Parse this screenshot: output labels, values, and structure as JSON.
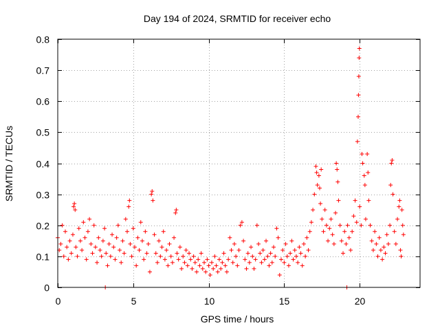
{
  "chart_data": {
    "type": "scatter",
    "title": "Day 194 of 2024, SRMTID for receiver echo",
    "xlabel": "GPS time / hours",
    "ylabel": "SRMTID / TECUs",
    "xlim": [
      0,
      24
    ],
    "ylim": [
      0,
      0.8
    ],
    "grid": true,
    "marker": "+",
    "color": "#ff0000",
    "x_ticks": [
      0,
      5,
      10,
      15,
      20
    ],
    "x_tick_labels": [
      "0",
      "5",
      "10",
      "15",
      "20"
    ],
    "y_ticks": [
      0,
      0.1,
      0.2,
      0.3,
      0.4,
      0.5,
      0.6,
      0.7,
      0.8
    ],
    "y_tick_labels": [
      "0",
      "0.1",
      "0.2",
      "0.3",
      "0.4",
      "0.5",
      "0.6",
      "0.7",
      "0.8"
    ],
    "series": [
      {
        "name": "SRMTID",
        "points": [
          [
            0.0,
            0.16
          ],
          [
            0.1,
            0.12
          ],
          [
            0.2,
            0.14
          ],
          [
            0.3,
            0.2
          ],
          [
            0.4,
            0.1
          ],
          [
            0.5,
            0.18
          ],
          [
            0.6,
            0.13
          ],
          [
            0.7,
            0.09
          ],
          [
            0.8,
            0.15
          ],
          [
            0.9,
            0.11
          ],
          [
            1.0,
            0.17
          ],
          [
            1.05,
            0.26
          ],
          [
            1.1,
            0.27
          ],
          [
            1.15,
            0.25
          ],
          [
            1.2,
            0.13
          ],
          [
            1.3,
            0.1
          ],
          [
            1.4,
            0.19
          ],
          [
            1.5,
            0.15
          ],
          [
            1.6,
            0.12
          ],
          [
            1.7,
            0.21
          ],
          [
            1.8,
            0.16
          ],
          [
            1.9,
            0.09
          ],
          [
            2.0,
            0.18
          ],
          [
            2.1,
            0.22
          ],
          [
            2.2,
            0.14
          ],
          [
            2.3,
            0.11
          ],
          [
            2.4,
            0.2
          ],
          [
            2.5,
            0.13
          ],
          [
            2.6,
            0.08
          ],
          [
            2.7,
            0.16
          ],
          [
            2.8,
            0.12
          ],
          [
            2.9,
            0.1
          ],
          [
            3.0,
            0.15
          ],
          [
            3.1,
            0.19
          ],
          [
            3.15,
            0.0
          ],
          [
            3.2,
            0.11
          ],
          [
            3.3,
            0.07
          ],
          [
            3.4,
            0.14
          ],
          [
            3.5,
            0.1
          ],
          [
            3.6,
            0.17
          ],
          [
            3.7,
            0.13
          ],
          [
            3.8,
            0.09
          ],
          [
            3.9,
            0.16
          ],
          [
            4.0,
            0.2
          ],
          [
            4.1,
            0.12
          ],
          [
            4.2,
            0.08
          ],
          [
            4.3,
            0.15
          ],
          [
            4.4,
            0.11
          ],
          [
            4.5,
            0.22
          ],
          [
            4.6,
            0.18
          ],
          [
            4.7,
            0.26
          ],
          [
            4.75,
            0.28
          ],
          [
            4.8,
            0.14
          ],
          [
            4.9,
            0.1
          ],
          [
            5.0,
            0.19
          ],
          [
            5.1,
            0.13
          ],
          [
            5.2,
            0.07
          ],
          [
            5.3,
            0.16
          ],
          [
            5.4,
            0.12
          ],
          [
            5.5,
            0.21
          ],
          [
            5.6,
            0.15
          ],
          [
            5.7,
            0.09
          ],
          [
            5.8,
            0.18
          ],
          [
            5.9,
            0.11
          ],
          [
            6.0,
            0.14
          ],
          [
            6.1,
            0.05
          ],
          [
            6.2,
            0.3
          ],
          [
            6.25,
            0.31
          ],
          [
            6.3,
            0.28
          ],
          [
            6.4,
            0.17
          ],
          [
            6.5,
            0.11
          ],
          [
            6.6,
            0.08
          ],
          [
            6.7,
            0.15
          ],
          [
            6.8,
            0.1
          ],
          [
            6.9,
            0.13
          ],
          [
            7.0,
            0.18
          ],
          [
            7.1,
            0.09
          ],
          [
            7.2,
            0.12
          ],
          [
            7.3,
            0.07
          ],
          [
            7.4,
            0.14
          ],
          [
            7.5,
            0.1
          ],
          [
            7.6,
            0.08
          ],
          [
            7.7,
            0.16
          ],
          [
            7.8,
            0.24
          ],
          [
            7.85,
            0.25
          ],
          [
            7.9,
            0.11
          ],
          [
            8.0,
            0.09
          ],
          [
            8.1,
            0.13
          ],
          [
            8.2,
            0.06
          ],
          [
            8.3,
            0.1
          ],
          [
            8.4,
            0.08
          ],
          [
            8.5,
            0.12
          ],
          [
            8.6,
            0.07
          ],
          [
            8.7,
            0.11
          ],
          [
            8.8,
            0.09
          ],
          [
            8.9,
            0.06
          ],
          [
            9.0,
            0.1
          ],
          [
            9.1,
            0.08
          ],
          [
            9.2,
            0.05
          ],
          [
            9.3,
            0.09
          ],
          [
            9.4,
            0.07
          ],
          [
            9.5,
            0.11
          ],
          [
            9.6,
            0.06
          ],
          [
            9.7,
            0.08
          ],
          [
            9.8,
            0.05
          ],
          [
            9.9,
            0.09
          ],
          [
            10.0,
            0.07
          ],
          [
            10.1,
            0.04
          ],
          [
            10.2,
            0.08
          ],
          [
            10.3,
            0.06
          ],
          [
            10.4,
            0.1
          ],
          [
            10.5,
            0.07
          ],
          [
            10.6,
            0.05
          ],
          [
            10.7,
            0.09
          ],
          [
            10.8,
            0.06
          ],
          [
            10.9,
            0.08
          ],
          [
            11.0,
            0.11
          ],
          [
            11.1,
            0.07
          ],
          [
            11.2,
            0.05
          ],
          [
            11.3,
            0.09
          ],
          [
            11.4,
            0.16
          ],
          [
            11.5,
            0.12
          ],
          [
            11.6,
            0.08
          ],
          [
            11.7,
            0.14
          ],
          [
            11.8,
            0.1
          ],
          [
            11.9,
            0.07
          ],
          [
            12.0,
            0.12
          ],
          [
            12.1,
            0.2
          ],
          [
            12.2,
            0.21
          ],
          [
            12.3,
            0.15
          ],
          [
            12.4,
            0.09
          ],
          [
            12.5,
            0.06
          ],
          [
            12.6,
            0.11
          ],
          [
            12.7,
            0.08
          ],
          [
            12.8,
            0.13
          ],
          [
            12.9,
            0.1
          ],
          [
            13.0,
            0.06
          ],
          [
            13.1,
            0.09
          ],
          [
            13.2,
            0.2
          ],
          [
            13.3,
            0.14
          ],
          [
            13.4,
            0.11
          ],
          [
            13.5,
            0.08
          ],
          [
            13.6,
            0.12
          ],
          [
            13.7,
            0.09
          ],
          [
            13.8,
            0.15
          ],
          [
            13.9,
            0.1
          ],
          [
            14.0,
            0.07
          ],
          [
            14.1,
            0.11
          ],
          [
            14.2,
            0.08
          ],
          [
            14.3,
            0.13
          ],
          [
            14.4,
            0.1
          ],
          [
            14.5,
            0.19
          ],
          [
            14.6,
            0.16
          ],
          [
            14.7,
            0.04
          ],
          [
            14.8,
            0.09
          ],
          [
            14.9,
            0.12
          ],
          [
            15.0,
            0.08
          ],
          [
            15.1,
            0.14
          ],
          [
            15.2,
            0.1
          ],
          [
            15.3,
            0.07
          ],
          [
            15.4,
            0.11
          ],
          [
            15.5,
            0.15
          ],
          [
            15.6,
            0.09
          ],
          [
            15.7,
            0.12
          ],
          [
            15.8,
            0.1
          ],
          [
            15.9,
            0.08
          ],
          [
            16.0,
            0.13
          ],
          [
            16.1,
            0.11
          ],
          [
            16.2,
            0.07
          ],
          [
            16.3,
            0.14
          ],
          [
            16.4,
            0.1
          ],
          [
            16.5,
            0.16
          ],
          [
            16.6,
            0.12
          ],
          [
            16.7,
            0.18
          ],
          [
            16.8,
            0.21
          ],
          [
            16.9,
            0.25
          ],
          [
            17.0,
            0.3
          ],
          [
            17.1,
            0.39
          ],
          [
            17.15,
            0.37
          ],
          [
            17.2,
            0.33
          ],
          [
            17.3,
            0.36
          ],
          [
            17.35,
            0.32
          ],
          [
            17.4,
            0.27
          ],
          [
            17.45,
            0.38
          ],
          [
            17.5,
            0.22
          ],
          [
            17.6,
            0.18
          ],
          [
            17.7,
            0.25
          ],
          [
            17.8,
            0.2
          ],
          [
            17.9,
            0.15
          ],
          [
            18.0,
            0.19
          ],
          [
            18.1,
            0.22
          ],
          [
            18.2,
            0.17
          ],
          [
            18.3,
            0.14
          ],
          [
            18.4,
            0.24
          ],
          [
            18.45,
            0.4
          ],
          [
            18.5,
            0.38
          ],
          [
            18.55,
            0.34
          ],
          [
            18.6,
            0.28
          ],
          [
            18.7,
            0.2
          ],
          [
            18.8,
            0.15
          ],
          [
            18.9,
            0.11
          ],
          [
            19.0,
            0.18
          ],
          [
            19.1,
            0.14
          ],
          [
            19.15,
            0.0
          ],
          [
            19.2,
            0.2
          ],
          [
            19.3,
            0.16
          ],
          [
            19.4,
            0.12
          ],
          [
            19.5,
            0.18
          ],
          [
            19.6,
            0.23
          ],
          [
            19.7,
            0.28
          ],
          [
            19.8,
            0.21
          ],
          [
            19.85,
            0.47
          ],
          [
            19.9,
            0.55
          ],
          [
            19.92,
            0.62
          ],
          [
            19.94,
            0.68
          ],
          [
            19.96,
            0.74
          ],
          [
            19.98,
            0.77
          ],
          [
            20.0,
            0.26
          ],
          [
            20.1,
            0.2
          ],
          [
            20.15,
            0.43
          ],
          [
            20.2,
            0.4
          ],
          [
            20.3,
            0.36
          ],
          [
            20.35,
            0.33
          ],
          [
            20.4,
            0.22
          ],
          [
            20.5,
            0.43
          ],
          [
            20.55,
            0.37
          ],
          [
            20.6,
            0.28
          ],
          [
            20.7,
            0.2
          ],
          [
            20.8,
            0.15
          ],
          [
            20.9,
            0.12
          ],
          [
            21.0,
            0.18
          ],
          [
            21.1,
            0.14
          ],
          [
            21.2,
            0.1
          ],
          [
            21.3,
            0.16
          ],
          [
            21.4,
            0.12
          ],
          [
            21.5,
            0.09
          ],
          [
            21.6,
            0.13
          ],
          [
            21.7,
            0.11
          ],
          [
            21.8,
            0.17
          ],
          [
            21.9,
            0.14
          ],
          [
            22.0,
            0.2
          ],
          [
            22.05,
            0.33
          ],
          [
            22.1,
            0.4
          ],
          [
            22.15,
            0.41
          ],
          [
            22.2,
            0.3
          ],
          [
            22.3,
            0.18
          ],
          [
            22.4,
            0.14
          ],
          [
            22.5,
            0.22
          ],
          [
            22.6,
            0.26
          ],
          [
            22.65,
            0.28
          ],
          [
            22.7,
            0.12
          ],
          [
            22.75,
            0.1
          ],
          [
            22.8,
            0.25
          ],
          [
            22.85,
            0.2
          ],
          [
            22.9,
            0.17
          ]
        ]
      }
    ]
  }
}
